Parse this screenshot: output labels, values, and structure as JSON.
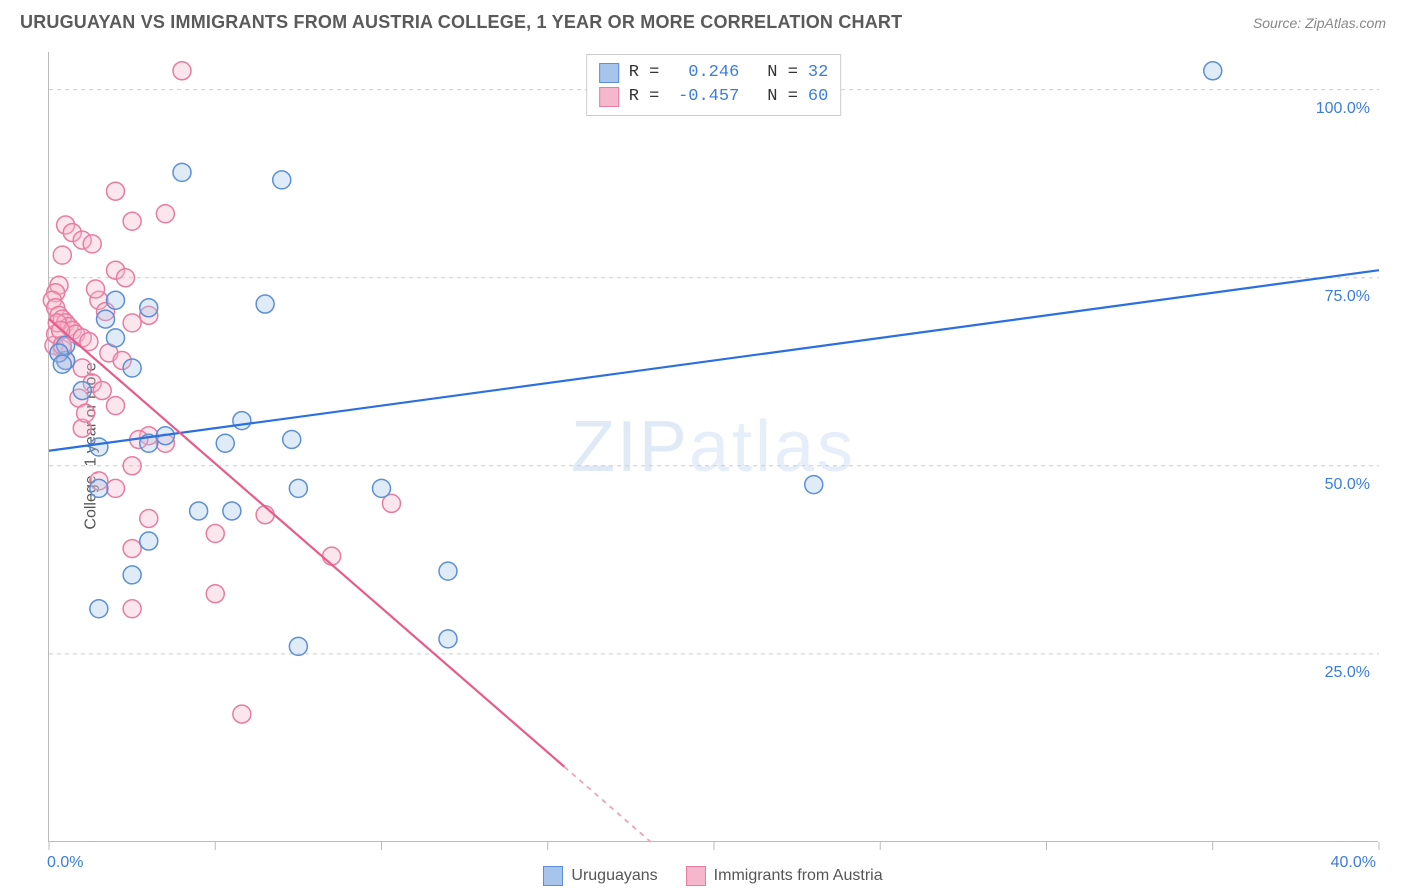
{
  "meta": {
    "title": "URUGUAYAN VS IMMIGRANTS FROM AUSTRIA COLLEGE, 1 YEAR OR MORE CORRELATION CHART",
    "source": "Source: ZipAtlas.com",
    "watermark": "ZIPatlas"
  },
  "chart": {
    "type": "scatter",
    "ylabel": "College, 1 year or more",
    "xlim": [
      0,
      40
    ],
    "ylim": [
      0,
      105
    ],
    "x_ticks": [
      0,
      5,
      10,
      15,
      20,
      25,
      30,
      35,
      40
    ],
    "x_tick_labels": {
      "0": "0.0%",
      "40": "40.0%"
    },
    "y_gridlines": [
      25,
      50,
      75,
      100
    ],
    "y_tick_labels": {
      "25": "25.0%",
      "50": "50.0%",
      "75": "75.0%",
      "100": "100.0%"
    },
    "background_color": "#ffffff",
    "grid_color": "#cccccc",
    "grid_dash": "4 4",
    "axis_label_color": "#3b7ddd",
    "axis_label_fontsize": 16,
    "marker_radius": 9,
    "marker_stroke_width": 1.5,
    "marker_fill_opacity": 0.35,
    "trend_line_width": 2.2
  },
  "series": {
    "uruguayans": {
      "label": "Uruguayans",
      "color_stroke": "#5b8fd6",
      "color_fill": "#a7c5ec",
      "R": "0.246",
      "N": "32",
      "trend": {
        "x1": 0,
        "y1": 52,
        "x2": 40,
        "y2": 76,
        "color": "#2b6fe0"
      },
      "points": [
        [
          35.0,
          102.5
        ],
        [
          7.0,
          88.0
        ],
        [
          4.0,
          89.0
        ],
        [
          23.0,
          47.5
        ],
        [
          2.0,
          72.0
        ],
        [
          1.7,
          69.5
        ],
        [
          2.0,
          67.0
        ],
        [
          0.5,
          64.0
        ],
        [
          0.5,
          66.0
        ],
        [
          3.0,
          71.0
        ],
        [
          6.5,
          71.5
        ],
        [
          2.5,
          63.0
        ],
        [
          5.8,
          56.0
        ],
        [
          5.3,
          53.0
        ],
        [
          7.3,
          53.5
        ],
        [
          1.5,
          52.5
        ],
        [
          3.0,
          53.0
        ],
        [
          3.5,
          54.0
        ],
        [
          7.5,
          47.0
        ],
        [
          10.0,
          47.0
        ],
        [
          1.5,
          47.0
        ],
        [
          4.5,
          44.0
        ],
        [
          5.5,
          44.0
        ],
        [
          3.0,
          40.0
        ],
        [
          2.5,
          35.5
        ],
        [
          12.0,
          36.0
        ],
        [
          1.5,
          31.0
        ],
        [
          12.0,
          27.0
        ],
        [
          7.5,
          26.0
        ],
        [
          0.3,
          65.0
        ],
        [
          0.4,
          63.5
        ],
        [
          1.0,
          60.0
        ]
      ]
    },
    "austria": {
      "label": "Immigrants from Austria",
      "color_stroke": "#e87ca0",
      "color_fill": "#f5b7cb",
      "R": "-0.457",
      "N": "60",
      "trend_solid": {
        "x1": 0,
        "y1": 69.5,
        "x2": 15.5,
        "y2": 10,
        "color": "#e85a8a"
      },
      "trend_dashed": {
        "x1": 15.5,
        "y1": 10,
        "x2": 18.1,
        "y2": 0,
        "color": "#f0a0ba"
      },
      "points": [
        [
          4.0,
          102.5
        ],
        [
          2.0,
          86.5
        ],
        [
          2.5,
          82.5
        ],
        [
          3.5,
          83.5
        ],
        [
          0.5,
          82.0
        ],
        [
          0.7,
          81.0
        ],
        [
          1.0,
          80.0
        ],
        [
          1.3,
          79.5
        ],
        [
          0.4,
          78.0
        ],
        [
          0.3,
          74.0
        ],
        [
          0.2,
          73.0
        ],
        [
          0.1,
          72.0
        ],
        [
          0.2,
          71.0
        ],
        [
          0.3,
          70.0
        ],
        [
          0.4,
          69.5
        ],
        [
          0.5,
          69.0
        ],
        [
          0.6,
          68.5
        ],
        [
          0.7,
          68.0
        ],
        [
          0.8,
          67.5
        ],
        [
          1.0,
          67.0
        ],
        [
          1.2,
          66.5
        ],
        [
          0.4,
          65.5
        ],
        [
          0.5,
          64.0
        ],
        [
          1.5,
          72.0
        ],
        [
          1.7,
          70.5
        ],
        [
          2.0,
          76.0
        ],
        [
          2.3,
          75.0
        ],
        [
          1.4,
          73.5
        ],
        [
          1.0,
          63.0
        ],
        [
          1.3,
          61.0
        ],
        [
          1.6,
          60.0
        ],
        [
          2.0,
          58.0
        ],
        [
          2.5,
          69.0
        ],
        [
          3.0,
          70.0
        ],
        [
          3.5,
          53.0
        ],
        [
          3.0,
          54.0
        ],
        [
          2.7,
          53.5
        ],
        [
          1.0,
          55.0
        ],
        [
          1.5,
          48.0
        ],
        [
          2.0,
          47.0
        ],
        [
          2.5,
          50.0
        ],
        [
          6.5,
          43.5
        ],
        [
          5.0,
          41.0
        ],
        [
          3.0,
          43.0
        ],
        [
          2.5,
          39.0
        ],
        [
          10.3,
          45.0
        ],
        [
          8.5,
          38.0
        ],
        [
          5.0,
          33.0
        ],
        [
          2.5,
          31.0
        ],
        [
          5.8,
          17.0
        ],
        [
          0.15,
          66.0
        ],
        [
          0.2,
          67.5
        ],
        [
          0.25,
          69.0
        ],
        [
          0.3,
          65.0
        ],
        [
          0.35,
          68.0
        ],
        [
          0.4,
          66.0
        ],
        [
          1.8,
          65.0
        ],
        [
          2.2,
          64.0
        ],
        [
          0.9,
          59.0
        ],
        [
          1.1,
          57.0
        ]
      ]
    }
  },
  "legend_top": {
    "r_label": "R =",
    "n_label": "N =",
    "value_color": "#3b7ddd"
  }
}
